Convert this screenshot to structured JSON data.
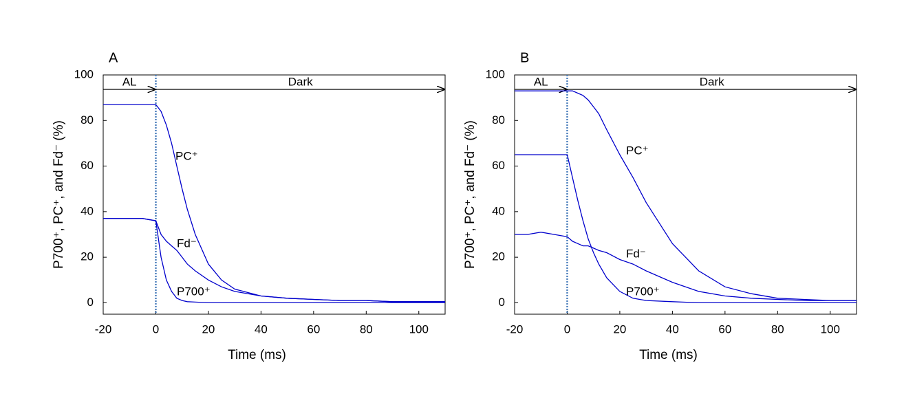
{
  "chart_data": [
    {
      "type": "line",
      "panel": "A",
      "xlabel": "Time (ms)",
      "ylabel": "P700⁺, PC⁺, and Fd⁻ (%)",
      "x": [
        -20,
        -15,
        -10,
        -5,
        0,
        2,
        4,
        6,
        8,
        10,
        12,
        15,
        20,
        25,
        30,
        40,
        50,
        60,
        70,
        80,
        90,
        100,
        110
      ],
      "series": [
        {
          "name": "PC⁺",
          "color": "#0000cc",
          "values": [
            87,
            87,
            87,
            87,
            87,
            84,
            78,
            70,
            60,
            50,
            41,
            30,
            17,
            10,
            6,
            3,
            2,
            1.5,
            1,
            1,
            0.5,
            0.5,
            0.5
          ]
        },
        {
          "name": "Fd⁻",
          "color": "#0000cc",
          "values": [
            37,
            37,
            37,
            37,
            36,
            30,
            27,
            25,
            23,
            20,
            17,
            14,
            10,
            7,
            5,
            3,
            2,
            1.5,
            1,
            1,
            0.5,
            0.5,
            0.5
          ]
        },
        {
          "name": "P700⁺",
          "color": "#0000cc",
          "values": [
            37,
            37,
            37,
            37,
            36,
            20,
            10,
            5,
            2,
            1,
            0.5,
            0.3,
            0,
            0,
            0,
            0,
            0,
            0,
            0,
            0,
            0,
            0,
            0
          ]
        }
      ],
      "xlim": [
        -20,
        110
      ],
      "xticks": [
        -20,
        0,
        20,
        40,
        60,
        80,
        100
      ],
      "ylim": [
        -5,
        100
      ],
      "yticks": [
        0,
        20,
        40,
        60,
        80,
        100
      ],
      "vline": 0,
      "annotations": [
        {
          "text": "AL",
          "from": -20,
          "to": 0
        },
        {
          "text": "Dark",
          "from": 0,
          "to": 110
        }
      ]
    },
    {
      "type": "line",
      "panel": "B",
      "xlabel": "Time (ms)",
      "ylabel": "P700⁺, PC⁺, and Fd⁻ (%)",
      "x": [
        -20,
        -15,
        -10,
        -5,
        0,
        2,
        4,
        6,
        8,
        10,
        12,
        15,
        20,
        25,
        30,
        40,
        50,
        60,
        70,
        80,
        90,
        100,
        110
      ],
      "series": [
        {
          "name": "PC⁺",
          "color": "#0000cc",
          "values": [
            93,
            93,
            93,
            93,
            93,
            93,
            92,
            91,
            89,
            86,
            83,
            76,
            65,
            55,
            44,
            26,
            14,
            7,
            4,
            2,
            1.5,
            1,
            1
          ]
        },
        {
          "name": "Fd⁻",
          "color": "#0000cc",
          "values": [
            30,
            30,
            31,
            30,
            29,
            27,
            26,
            25,
            25,
            24,
            23,
            22,
            19,
            17,
            14,
            9,
            5,
            3,
            2,
            1.5,
            1,
            1,
            1
          ]
        },
        {
          "name": "P700⁺",
          "color": "#0000cc",
          "values": [
            65,
            65,
            65,
            65,
            65,
            55,
            45,
            36,
            28,
            22,
            17,
            11,
            5,
            2,
            1,
            0.5,
            0,
            0,
            0,
            0,
            0,
            0,
            0
          ]
        }
      ],
      "xlim": [
        -20,
        110
      ],
      "xticks": [
        -20,
        0,
        20,
        40,
        60,
        80,
        100
      ],
      "ylim": [
        -5,
        100
      ],
      "yticks": [
        0,
        20,
        40,
        60,
        80,
        100
      ],
      "vline": 0,
      "annotations": [
        {
          "text": "AL",
          "from": -20,
          "to": 0
        },
        {
          "text": "Dark",
          "from": 0,
          "to": 110
        }
      ]
    }
  ]
}
